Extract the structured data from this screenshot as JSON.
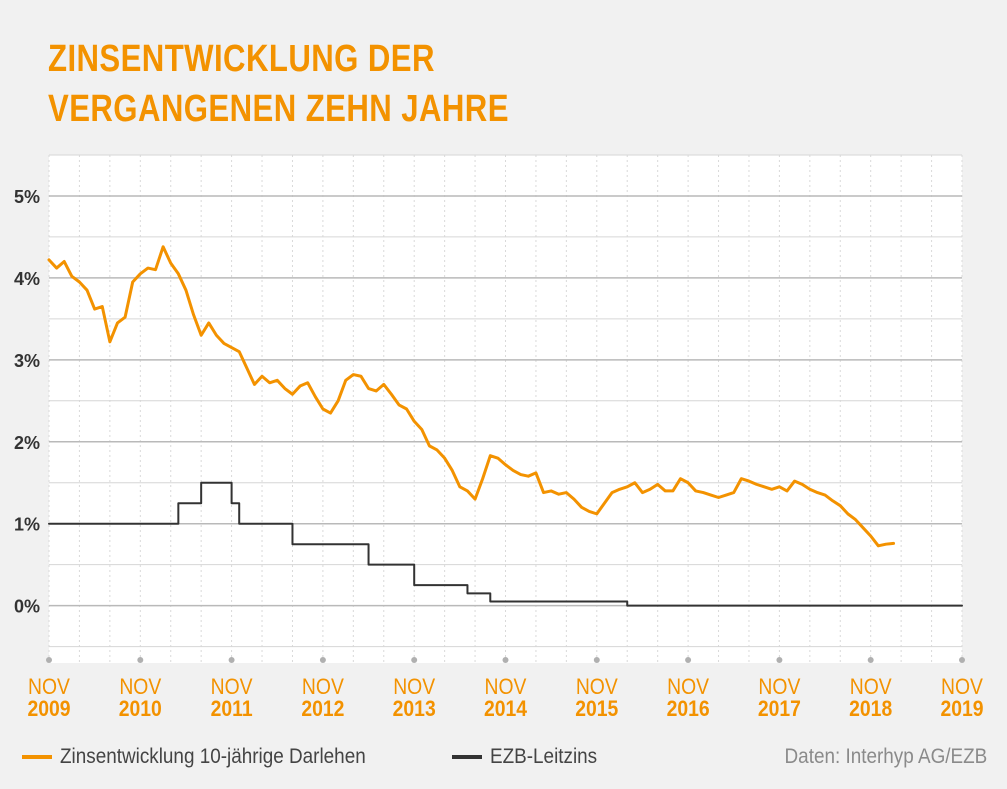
{
  "chart_data": {
    "type": "line",
    "title": "ZINSENTWICKLUNG DER VERGANGENEN ZEHN JAHRE",
    "title_lines": [
      "ZINSENTWICKLUNG DER",
      "VERGANGENEN ZEHN JAHRE"
    ],
    "source": "Daten: Interhyp AG/EZB",
    "x_range": [
      "2009-11",
      "2019-11"
    ],
    "ylim": [
      -0.7,
      5.5
    ],
    "y_ticks": [
      {
        "value": 0,
        "label": "0%"
      },
      {
        "value": 1,
        "label": "1%"
      },
      {
        "value": 2,
        "label": "2%"
      },
      {
        "value": 3,
        "label": "3%"
      },
      {
        "value": 4,
        "label": "4%"
      },
      {
        "value": 5,
        "label": "5%"
      }
    ],
    "x_ticks": [
      {
        "date": "2009-11",
        "month": "NOV",
        "year": "2009"
      },
      {
        "date": "2010-11",
        "month": "NOV",
        "year": "2010"
      },
      {
        "date": "2011-11",
        "month": "NOV",
        "year": "2011"
      },
      {
        "date": "2012-11",
        "month": "NOV",
        "year": "2012"
      },
      {
        "date": "2013-11",
        "month": "NOV",
        "year": "2013"
      },
      {
        "date": "2014-11",
        "month": "NOV",
        "year": "2014"
      },
      {
        "date": "2015-11",
        "month": "NOV",
        "year": "2015"
      },
      {
        "date": "2016-11",
        "month": "NOV",
        "year": "2016"
      },
      {
        "date": "2017-11",
        "month": "NOV",
        "year": "2017"
      },
      {
        "date": "2018-11",
        "month": "NOV",
        "year": "2018"
      },
      {
        "date": "2019-11",
        "month": "NOV",
        "year": "2019"
      }
    ],
    "grid": true,
    "legend_position": "bottom-left",
    "series": [
      {
        "name": "Zinsentwicklung 10-jährige Darlehen",
        "color": "#f39200",
        "shape": "linear",
        "points": [
          [
            "2009-11",
            4.22
          ],
          [
            "2009-12",
            4.12
          ],
          [
            "2010-01",
            4.2
          ],
          [
            "2010-02",
            4.02
          ],
          [
            "2010-03",
            3.95
          ],
          [
            "2010-04",
            3.85
          ],
          [
            "2010-05",
            3.62
          ],
          [
            "2010-06",
            3.65
          ],
          [
            "2010-07",
            3.22
          ],
          [
            "2010-08",
            3.45
          ],
          [
            "2010-09",
            3.52
          ],
          [
            "2010-10",
            3.95
          ],
          [
            "2010-11",
            4.05
          ],
          [
            "2010-12",
            4.12
          ],
          [
            "2011-01",
            4.1
          ],
          [
            "2011-02",
            4.38
          ],
          [
            "2011-03",
            4.18
          ],
          [
            "2011-04",
            4.05
          ],
          [
            "2011-05",
            3.85
          ],
          [
            "2011-06",
            3.55
          ],
          [
            "2011-07",
            3.3
          ],
          [
            "2011-08",
            3.45
          ],
          [
            "2011-09",
            3.3
          ],
          [
            "2011-10",
            3.2
          ],
          [
            "2011-11",
            3.15
          ],
          [
            "2011-12",
            3.1
          ],
          [
            "2012-01",
            2.9
          ],
          [
            "2012-02",
            2.7
          ],
          [
            "2012-03",
            2.8
          ],
          [
            "2012-04",
            2.72
          ],
          [
            "2012-05",
            2.75
          ],
          [
            "2012-06",
            2.65
          ],
          [
            "2012-07",
            2.58
          ],
          [
            "2012-08",
            2.68
          ],
          [
            "2012-09",
            2.72
          ],
          [
            "2012-10",
            2.55
          ],
          [
            "2012-11",
            2.4
          ],
          [
            "2012-12",
            2.35
          ],
          [
            "2013-01",
            2.5
          ],
          [
            "2013-02",
            2.75
          ],
          [
            "2013-03",
            2.82
          ],
          [
            "2013-04",
            2.8
          ],
          [
            "2013-05",
            2.65
          ],
          [
            "2013-06",
            2.62
          ],
          [
            "2013-07",
            2.7
          ],
          [
            "2013-08",
            2.58
          ],
          [
            "2013-09",
            2.45
          ],
          [
            "2013-10",
            2.4
          ],
          [
            "2013-11",
            2.25
          ],
          [
            "2013-12",
            2.15
          ],
          [
            "2014-01",
            1.95
          ],
          [
            "2014-02",
            1.9
          ],
          [
            "2014-03",
            1.8
          ],
          [
            "2014-04",
            1.65
          ],
          [
            "2014-05",
            1.45
          ],
          [
            "2014-06",
            1.4
          ],
          [
            "2014-07",
            1.3
          ],
          [
            "2014-08",
            1.55
          ],
          [
            "2014-09",
            1.83
          ],
          [
            "2014-10",
            1.8
          ],
          [
            "2014-11",
            1.72
          ],
          [
            "2014-12",
            1.65
          ],
          [
            "2015-01",
            1.6
          ],
          [
            "2015-02",
            1.58
          ],
          [
            "2015-03",
            1.62
          ],
          [
            "2015-04",
            1.38
          ],
          [
            "2015-05",
            1.4
          ],
          [
            "2015-06",
            1.36
          ],
          [
            "2015-07",
            1.38
          ],
          [
            "2015-08",
            1.3
          ],
          [
            "2015-09",
            1.2
          ],
          [
            "2015-10",
            1.15
          ],
          [
            "2015-11",
            1.12
          ],
          [
            "2015-12",
            1.25
          ],
          [
            "2016-01",
            1.38
          ],
          [
            "2016-02",
            1.42
          ],
          [
            "2016-03",
            1.45
          ],
          [
            "2016-04",
            1.5
          ],
          [
            "2016-05",
            1.38
          ],
          [
            "2016-06",
            1.42
          ],
          [
            "2016-07",
            1.48
          ],
          [
            "2016-08",
            1.4
          ],
          [
            "2016-09",
            1.4
          ],
          [
            "2016-10",
            1.55
          ],
          [
            "2016-11",
            1.5
          ],
          [
            "2016-12",
            1.4
          ],
          [
            "2017-01",
            1.38
          ],
          [
            "2017-02",
            1.35
          ],
          [
            "2017-03",
            1.32
          ],
          [
            "2017-04",
            1.35
          ],
          [
            "2017-05",
            1.38
          ],
          [
            "2017-06",
            1.55
          ],
          [
            "2017-07",
            1.52
          ],
          [
            "2017-08",
            1.48
          ],
          [
            "2017-09",
            1.45
          ],
          [
            "2017-10",
            1.42
          ],
          [
            "2017-11",
            1.45
          ],
          [
            "2017-12",
            1.4
          ],
          [
            "2018-01",
            1.52
          ],
          [
            "2018-02",
            1.48
          ],
          [
            "2018-03",
            1.42
          ],
          [
            "2018-04",
            1.38
          ],
          [
            "2018-05",
            1.35
          ],
          [
            "2018-06",
            1.28
          ],
          [
            "2018-07",
            1.22
          ],
          [
            "2018-08",
            1.12
          ],
          [
            "2018-09",
            1.05
          ],
          [
            "2018-10",
            0.95
          ],
          [
            "2018-11",
            0.85
          ],
          [
            "2018-12",
            0.73
          ],
          [
            "2019-01",
            0.75
          ],
          [
            "2019-02",
            0.76
          ]
        ]
      },
      {
        "name": "EZB-Leitzins",
        "color": "#333333",
        "shape": "step",
        "points": [
          [
            "2009-11",
            1.0
          ],
          [
            "2011-04",
            1.25
          ],
          [
            "2011-07",
            1.5
          ],
          [
            "2011-11",
            1.25
          ],
          [
            "2011-12",
            1.0
          ],
          [
            "2012-07",
            0.75
          ],
          [
            "2013-05",
            0.5
          ],
          [
            "2013-11",
            0.25
          ],
          [
            "2014-06",
            0.15
          ],
          [
            "2014-09",
            0.05
          ],
          [
            "2016-03",
            0.0
          ],
          [
            "2019-11",
            0.0
          ]
        ]
      }
    ]
  }
}
